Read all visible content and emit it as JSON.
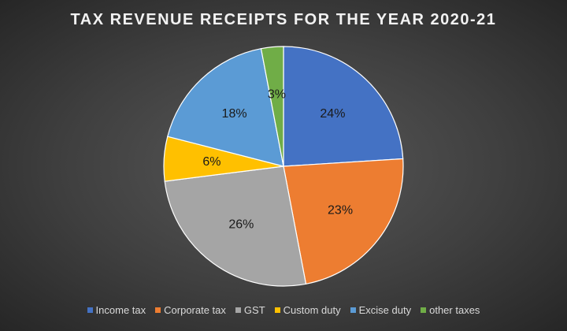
{
  "chart_data": {
    "type": "pie",
    "title": "TAX REVENUE RECEIPTS FOR THE YEAR 2020-21",
    "slices": [
      {
        "name": "Income tax",
        "value": 24,
        "label": "24%",
        "color": "#4472c4"
      },
      {
        "name": "Corporate tax",
        "value": 23,
        "label": "23%",
        "color": "#ed7d31"
      },
      {
        "name": "GST",
        "value": 26,
        "label": "26%",
        "color": "#a5a5a5"
      },
      {
        "name": "Custom duty",
        "value": 6,
        "label": "6%",
        "color": "#ffc000"
      },
      {
        "name": "Excise duty",
        "value": 18,
        "label": "18%",
        "color": "#5b9bd5"
      },
      {
        "name": "other taxes",
        "value": 3,
        "label": "3%",
        "color": "#70ad47"
      }
    ],
    "legend_position": "bottom"
  }
}
